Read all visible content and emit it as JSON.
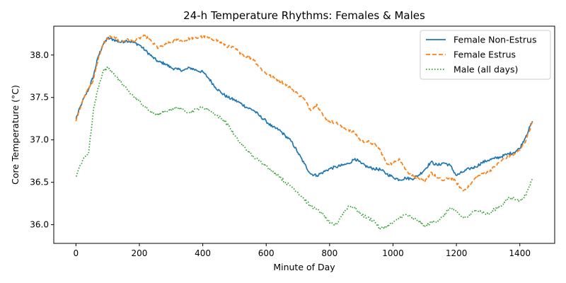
{
  "chart_data": {
    "type": "line",
    "title": "24-h Temperature Rhythms: Females & Males",
    "xlabel": "Minute of Day",
    "ylabel": "Core Temperature (°C)",
    "xlim": [
      -70,
      1510
    ],
    "ylim": [
      35.78,
      38.34
    ],
    "xticks": [
      0,
      200,
      400,
      600,
      800,
      1000,
      1200,
      1400
    ],
    "yticks": [
      36.0,
      36.5,
      37.0,
      37.5,
      38.0
    ],
    "ytick_labels": [
      "36.0",
      "36.5",
      "37.0",
      "37.5",
      "38.0"
    ],
    "grid": false,
    "legend_position": "top-right",
    "series": [
      {
        "name": "Female Non-Estrus",
        "color": "#1f77b4",
        "dash": "solid",
        "x": [
          0,
          20,
          40,
          55,
          70,
          85,
          100,
          120,
          140,
          160,
          180,
          200,
          220,
          240,
          260,
          280,
          300,
          320,
          340,
          360,
          380,
          400,
          420,
          440,
          460,
          480,
          500,
          520,
          540,
          560,
          580,
          600,
          620,
          640,
          660,
          680,
          700,
          720,
          740,
          760,
          780,
          800,
          820,
          840,
          860,
          880,
          900,
          920,
          940,
          960,
          980,
          1000,
          1020,
          1040,
          1060,
          1080,
          1100,
          1120,
          1140,
          1160,
          1180,
          1200,
          1220,
          1240,
          1260,
          1280,
          1300,
          1320,
          1340,
          1360,
          1380,
          1400,
          1420,
          1440
        ],
        "y": [
          37.25,
          37.45,
          37.6,
          37.75,
          37.98,
          38.12,
          38.2,
          38.18,
          38.15,
          38.17,
          38.15,
          38.12,
          38.05,
          37.98,
          37.92,
          37.9,
          37.85,
          37.83,
          37.82,
          37.85,
          37.82,
          37.8,
          37.72,
          37.62,
          37.55,
          37.5,
          37.47,
          37.43,
          37.38,
          37.35,
          37.28,
          37.22,
          37.15,
          37.12,
          37.05,
          36.98,
          36.85,
          36.72,
          36.6,
          36.58,
          36.62,
          36.66,
          36.68,
          36.7,
          36.72,
          36.78,
          36.72,
          36.68,
          36.66,
          36.65,
          36.6,
          36.56,
          36.53,
          36.55,
          36.54,
          36.58,
          36.65,
          36.74,
          36.7,
          36.73,
          36.7,
          36.58,
          36.62,
          36.66,
          36.68,
          36.73,
          36.76,
          36.78,
          36.8,
          36.83,
          36.85,
          36.9,
          37.05,
          37.22
        ]
      },
      {
        "name": "Female Estrus",
        "color": "#ff7f0e",
        "dash": "dashed",
        "x": [
          0,
          20,
          40,
          55,
          70,
          85,
          100,
          120,
          140,
          160,
          180,
          200,
          220,
          240,
          260,
          280,
          300,
          320,
          340,
          360,
          380,
          400,
          420,
          440,
          460,
          480,
          500,
          520,
          540,
          560,
          580,
          600,
          620,
          640,
          660,
          680,
          700,
          720,
          740,
          760,
          780,
          800,
          820,
          840,
          860,
          880,
          900,
          920,
          940,
          960,
          980,
          1000,
          1020,
          1040,
          1060,
          1080,
          1100,
          1120,
          1140,
          1160,
          1180,
          1200,
          1220,
          1240,
          1260,
          1280,
          1300,
          1320,
          1340,
          1360,
          1380,
          1400,
          1420,
          1440
        ],
        "y": [
          37.22,
          37.45,
          37.62,
          37.7,
          37.95,
          38.12,
          38.2,
          38.22,
          38.15,
          38.18,
          38.16,
          38.2,
          38.22,
          38.15,
          38.08,
          38.12,
          38.15,
          38.18,
          38.16,
          38.2,
          38.2,
          38.22,
          38.2,
          38.18,
          38.14,
          38.1,
          38.08,
          38.02,
          37.98,
          37.95,
          37.85,
          37.78,
          37.74,
          37.7,
          37.66,
          37.6,
          37.54,
          37.48,
          37.35,
          37.42,
          37.28,
          37.22,
          37.2,
          37.15,
          37.12,
          37.08,
          36.98,
          36.98,
          36.95,
          36.88,
          36.72,
          36.72,
          36.78,
          36.65,
          36.58,
          36.55,
          36.5,
          36.62,
          36.55,
          36.52,
          36.56,
          36.5,
          36.4,
          36.45,
          36.55,
          36.6,
          36.62,
          36.68,
          36.75,
          36.8,
          36.82,
          36.88,
          37.0,
          37.22
        ]
      },
      {
        "name": "Male (all days)",
        "color": "#2ca02c",
        "dash": "dotted",
        "x": [
          0,
          20,
          40,
          55,
          70,
          85,
          100,
          120,
          140,
          160,
          180,
          200,
          220,
          240,
          260,
          280,
          300,
          320,
          340,
          360,
          380,
          400,
          420,
          440,
          460,
          480,
          500,
          520,
          540,
          560,
          580,
          600,
          620,
          640,
          660,
          680,
          700,
          720,
          740,
          760,
          780,
          800,
          820,
          840,
          860,
          880,
          900,
          920,
          940,
          960,
          980,
          1000,
          1020,
          1040,
          1060,
          1080,
          1100,
          1120,
          1140,
          1160,
          1180,
          1200,
          1220,
          1240,
          1260,
          1280,
          1300,
          1320,
          1340,
          1360,
          1380,
          1400,
          1420,
          1440
        ],
        "y": [
          36.57,
          36.75,
          36.85,
          37.35,
          37.62,
          37.8,
          37.85,
          37.78,
          37.68,
          37.6,
          37.52,
          37.45,
          37.38,
          37.32,
          37.3,
          37.33,
          37.36,
          37.38,
          37.35,
          37.32,
          37.36,
          37.38,
          37.35,
          37.3,
          37.25,
          37.18,
          37.05,
          36.95,
          36.88,
          36.8,
          36.75,
          36.7,
          36.62,
          36.58,
          36.5,
          36.45,
          36.38,
          36.3,
          36.22,
          36.18,
          36.12,
          36.02,
          36.0,
          36.12,
          36.22,
          36.2,
          36.12,
          36.08,
          36.05,
          35.95,
          35.98,
          36.02,
          36.08,
          36.12,
          36.08,
          36.05,
          35.98,
          36.02,
          36.05,
          36.1,
          36.2,
          36.15,
          36.08,
          36.1,
          36.18,
          36.15,
          36.12,
          36.18,
          36.22,
          36.3,
          36.32,
          36.28,
          36.35,
          36.55
        ]
      }
    ]
  }
}
